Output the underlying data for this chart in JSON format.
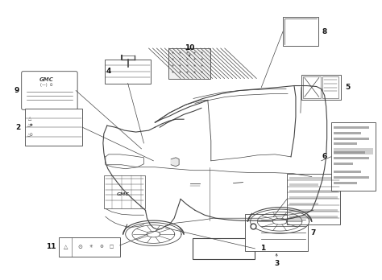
{
  "bg_color": "#ffffff",
  "line_color": "#444444",
  "label_color": "#111111",
  "fig_width": 4.74,
  "fig_height": 3.48,
  "dpi": 100
}
